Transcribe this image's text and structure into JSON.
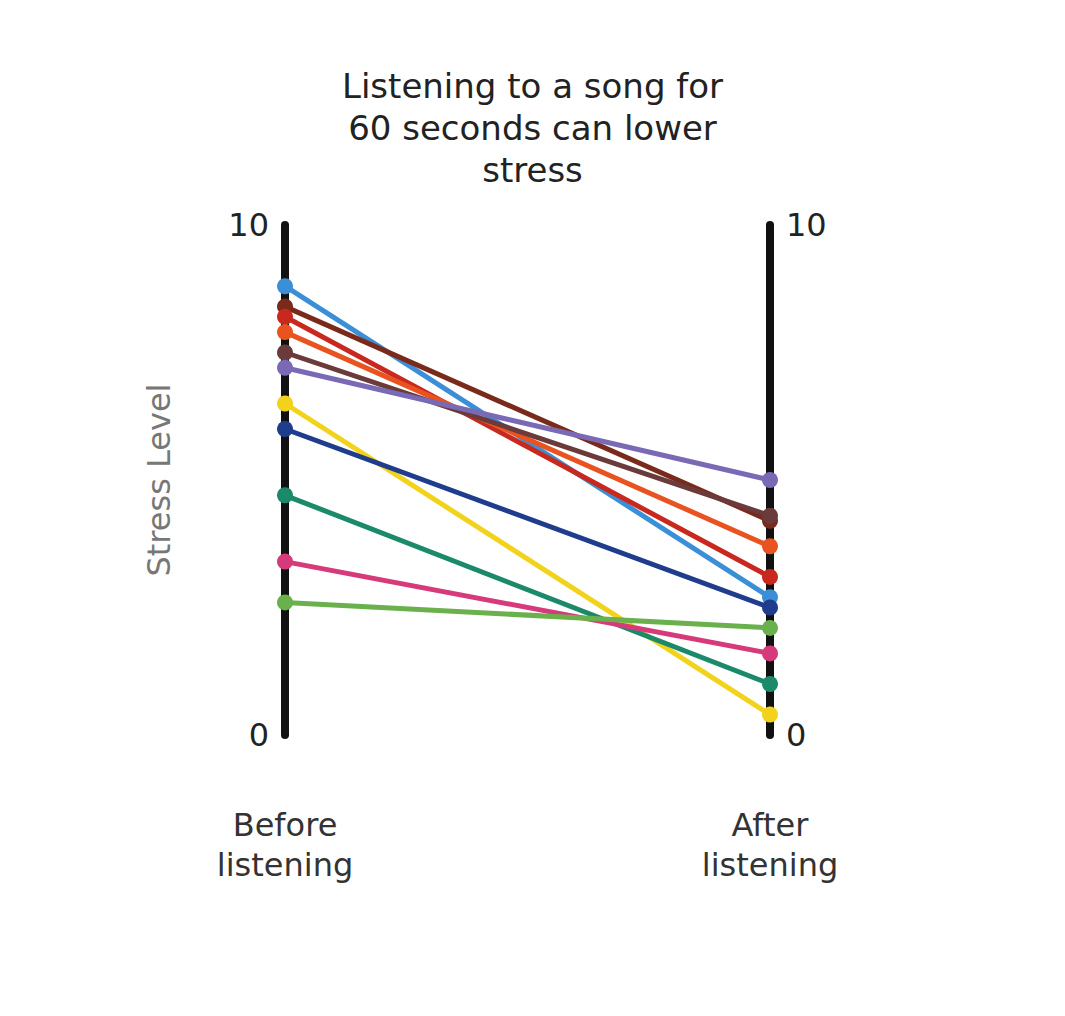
{
  "chart_data": {
    "type": "line",
    "title": "Listening to a song for 60 seconds can lower stress",
    "y_label": "Stress Level",
    "categories": [
      "Before listening",
      "After listening"
    ],
    "ylim": [
      0,
      10
    ],
    "yticks": [
      0,
      10
    ],
    "y2lim": [
      0,
      10
    ],
    "y2ticks": [
      0,
      10
    ],
    "marker": "circle",
    "series": [
      {
        "color": "#3a8fd6",
        "values": [
          8.8,
          2.7
        ]
      },
      {
        "color": "#7a2a1a",
        "values": [
          8.4,
          4.2
        ]
      },
      {
        "color": "#c8281e",
        "values": [
          8.2,
          3.1
        ]
      },
      {
        "color": "#e8531f",
        "values": [
          7.9,
          3.7
        ]
      },
      {
        "color": "#6b3b3b",
        "values": [
          7.5,
          4.3
        ]
      },
      {
        "color": "#7a6ab5",
        "values": [
          7.2,
          5.0
        ]
      },
      {
        "color": "#f2d21a",
        "values": [
          6.5,
          0.4
        ]
      },
      {
        "color": "#1f3d8c",
        "values": [
          6.0,
          2.5
        ]
      },
      {
        "color": "#1b8a6a",
        "values": [
          4.7,
          1.0
        ]
      },
      {
        "color": "#d63a7a",
        "values": [
          3.4,
          1.6
        ]
      },
      {
        "color": "#6ab04c",
        "values": [
          2.6,
          2.1
        ]
      }
    ]
  }
}
